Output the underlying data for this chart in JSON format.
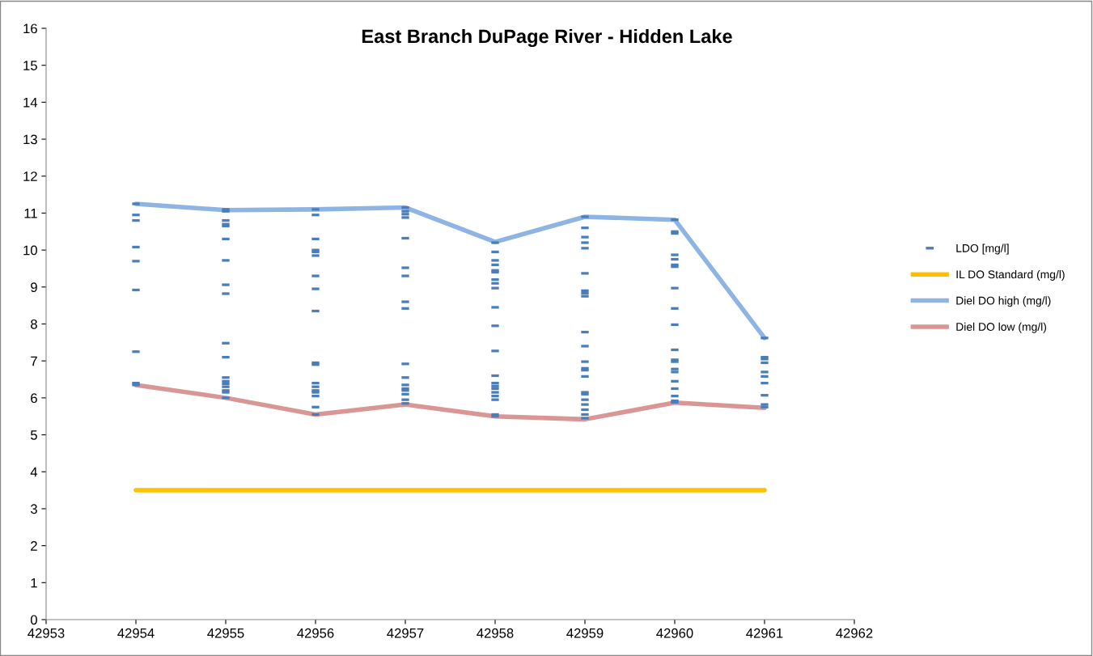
{
  "chart_data": {
    "type": "line",
    "title": "East Branch DuPage River - Hidden Lake",
    "xlim": [
      42953,
      42962
    ],
    "xticks": [
      42953,
      42954,
      42955,
      42956,
      42957,
      42958,
      42959,
      42960,
      42961,
      42962
    ],
    "ylim": [
      0,
      16
    ],
    "yticks": [
      0,
      1,
      2,
      3,
      4,
      5,
      6,
      7,
      8,
      9,
      10,
      11,
      12,
      13,
      14,
      15,
      16
    ],
    "grid": false,
    "legend": "right",
    "series": [
      {
        "name": "LDO [mg/l]",
        "type": "scatter",
        "color": "#4a7ebb",
        "x": [
          42954,
          42954,
          42954,
          42954,
          42954,
          42954,
          42954,
          42954,
          42954,
          42955,
          42955,
          42955,
          42955,
          42955,
          42955,
          42955,
          42955,
          42955,
          42955,
          42955,
          42955,
          42955,
          42955,
          42955,
          42955,
          42955,
          42955,
          42956,
          42956,
          42956,
          42956,
          42956,
          42956,
          42956,
          42956,
          42956,
          42956,
          42956,
          42956,
          42956,
          42956,
          42956,
          42956,
          42956,
          42956,
          42957,
          42957,
          42957,
          42957,
          42957,
          42957,
          42957,
          42957,
          42957,
          42957,
          42957,
          42957,
          42957,
          42957,
          42957,
          42957,
          42957,
          42958,
          42958,
          42958,
          42958,
          42958,
          42958,
          42958,
          42958,
          42958,
          42958,
          42958,
          42958,
          42958,
          42958,
          42958,
          42958,
          42958,
          42958,
          42958,
          42958,
          42958,
          42959,
          42959,
          42959,
          42959,
          42959,
          42959,
          42959,
          42959,
          42959,
          42959,
          42959,
          42959,
          42959,
          42959,
          42959,
          42959,
          42959,
          42959,
          42959,
          42959,
          42959,
          42959,
          42960,
          42960,
          42960,
          42960,
          42960,
          42960,
          42960,
          42960,
          42960,
          42960,
          42960,
          42960,
          42960,
          42960,
          42960,
          42960,
          42960,
          42960,
          42960,
          42960,
          42961,
          42961,
          42961,
          42961,
          42961,
          42961,
          42961,
          42961,
          42961,
          42961
        ],
        "values": [
          11.25,
          10.95,
          10.8,
          10.08,
          9.7,
          8.92,
          7.25,
          6.4,
          6.35,
          11.1,
          11.05,
          10.8,
          10.7,
          10.65,
          10.3,
          9.72,
          9.06,
          8.82,
          7.48,
          7.1,
          6.55,
          6.45,
          6.38,
          6.3,
          6.2,
          6.15,
          6.0,
          11.1,
          10.95,
          10.3,
          10.0,
          9.95,
          9.85,
          9.3,
          8.95,
          8.35,
          6.95,
          6.9,
          6.4,
          6.3,
          6.2,
          6.15,
          6.05,
          5.75,
          5.55,
          11.15,
          11.05,
          10.97,
          10.88,
          10.32,
          9.52,
          9.3,
          8.6,
          8.42,
          6.92,
          6.55,
          6.35,
          6.25,
          6.2,
          6.1,
          5.95,
          5.85,
          10.2,
          9.95,
          9.72,
          9.6,
          9.45,
          9.4,
          9.2,
          9.1,
          8.97,
          8.45,
          7.95,
          7.27,
          6.6,
          6.4,
          6.32,
          6.25,
          6.15,
          6.05,
          5.95,
          5.55,
          5.5,
          10.9,
          10.6,
          10.35,
          10.2,
          10.05,
          9.37,
          8.9,
          8.83,
          8.75,
          7.78,
          7.4,
          6.98,
          6.8,
          6.75,
          6.58,
          6.15,
          6.1,
          5.95,
          5.82,
          5.68,
          5.55,
          5.45,
          10.82,
          10.5,
          10.45,
          9.87,
          9.75,
          9.6,
          9.55,
          8.97,
          8.42,
          7.98,
          7.3,
          7.03,
          6.98,
          6.78,
          6.7,
          6.45,
          6.25,
          6.05,
          5.92,
          5.88,
          7.62,
          7.1,
          7.05,
          6.95,
          6.7,
          6.58,
          6.4,
          6.07,
          5.82,
          5.75
        ]
      },
      {
        "name": "IL DO Standard (mg/l)",
        "color": "#ffc000",
        "x": [
          42954,
          42961
        ],
        "values": [
          3.5,
          3.5
        ]
      },
      {
        "name": "Diel DO high (mg/l)",
        "color": "#8eb4e3",
        "x": [
          42954,
          42955,
          42956,
          42957,
          42958,
          42959,
          42960,
          42961
        ],
        "values": [
          11.25,
          11.08,
          11.1,
          11.15,
          10.22,
          10.9,
          10.82,
          7.62
        ]
      },
      {
        "name": "Diel DO low (mg/l)",
        "color": "#d99694",
        "x": [
          42954,
          42955,
          42956,
          42957,
          42958,
          42959,
          42960,
          42961
        ],
        "values": [
          6.35,
          6.0,
          5.55,
          5.82,
          5.5,
          5.42,
          5.87,
          5.73
        ]
      }
    ]
  }
}
